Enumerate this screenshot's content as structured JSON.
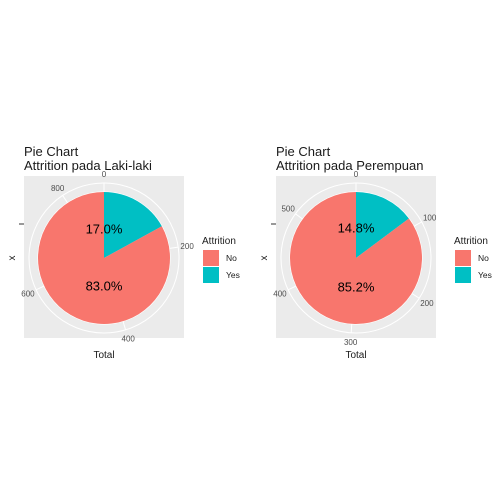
{
  "chart_data": [
    {
      "type": "pie",
      "title": "Pie Chart",
      "subtitle": "Attrition pada Laki-laki",
      "xlabel": "Total",
      "ylabel": "x",
      "categories": [
        "No",
        "Yes"
      ],
      "values": [
        732,
        150
      ],
      "percent_labels": [
        "83.0%",
        "17.0%"
      ],
      "colors": [
        "#F8766D",
        "#00BFC4"
      ],
      "axis_ticks": [
        0,
        200,
        400,
        600,
        800
      ],
      "axis_max": 882,
      "legend": {
        "title": "Attrition",
        "position": "right"
      },
      "grid": true
    },
    {
      "type": "pie",
      "title": "Pie Chart",
      "subtitle": "Attrition pada Perempuan",
      "xlabel": "Total",
      "ylabel": "x",
      "categories": [
        "No",
        "Yes"
      ],
      "values": [
        501,
        87
      ],
      "percent_labels": [
        "85.2%",
        "14.8%"
      ],
      "colors": [
        "#F8766D",
        "#00BFC4"
      ],
      "axis_ticks": [
        0,
        100,
        200,
        300,
        400,
        500
      ],
      "axis_max": 588,
      "legend": {
        "title": "Attrition",
        "position": "right"
      },
      "grid": true
    }
  ]
}
